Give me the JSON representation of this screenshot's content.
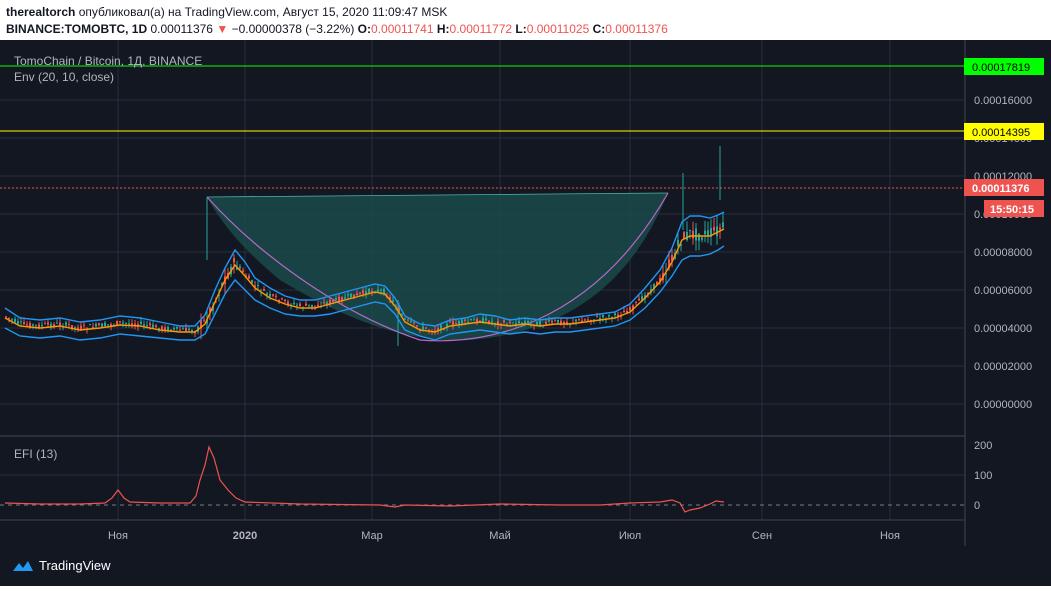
{
  "header": {
    "user": "therealtorch",
    "published_text": "опубликовал(а) на TradingView.com, Август 15, 2020 11:09:47 MSK",
    "symbol": "BINANCE:TOMOBTC, 1D",
    "last": "0.00011376",
    "change": "−0.00000378 (−3.22%)",
    "o_label": "O:",
    "o_value": "0.00011741",
    "h_label": "H:",
    "h_value": "0.00011772",
    "l_label": "L:",
    "l_value": "0.00011025",
    "c_label": "C:",
    "c_value": "0.00011376"
  },
  "legend": {
    "title": "TomoChain / Bitcoin, 1Д, BINANCE",
    "indicator": "Env (20, 10, close)",
    "efi": "EFI (13)"
  },
  "price_axis": {
    "ticks": [
      "0.00016000",
      "0.00014000",
      "0.00012000",
      "0.00010000",
      "0.00008000",
      "0.00006000",
      "0.00004000",
      "0.00002000",
      "0.00000000"
    ],
    "levels": [
      {
        "label": "0.00017819",
        "color": "#00ff00",
        "text_color": "#000000"
      },
      {
        "label": "0.00014395",
        "color": "#ffff00",
        "text_color": "#000000"
      },
      {
        "label": "0.00011376",
        "color": "#ef5350",
        "text_color": "#ffffff"
      }
    ],
    "countdown": "15:50:15"
  },
  "efi_axis": {
    "ticks": [
      "200",
      "100",
      "0"
    ]
  },
  "time_axis": {
    "labels": [
      "Ноя",
      "2020",
      "Мар",
      "Май",
      "Июл",
      "Сен",
      "Ноя"
    ]
  },
  "colors": {
    "background": "#131722",
    "up": "#26a69a",
    "down": "#ef5350",
    "envelope": "#2196f3",
    "basis": "#ff9800",
    "cup_fill": "#1a4a4a",
    "cup_stroke": "#ba68c8",
    "efi_line": "#ef5350"
  },
  "brand": {
    "name": "TradingView",
    "icon": "tradingview-logo-icon"
  }
}
